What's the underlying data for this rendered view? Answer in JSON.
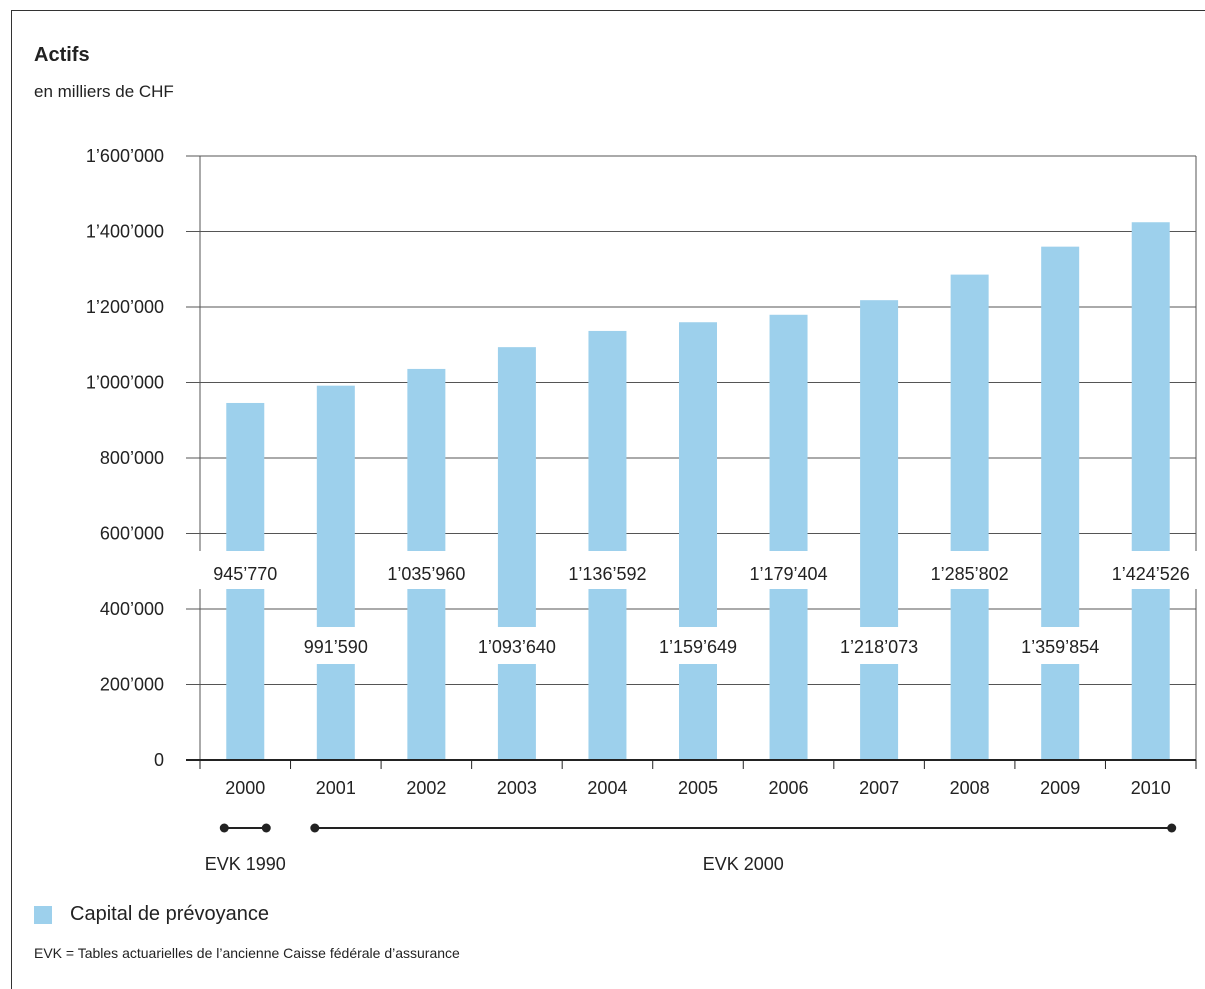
{
  "header": {
    "title": "Actifs",
    "subtitle": "en milliers de CHF"
  },
  "legend": {
    "label": "Capital de prévoyance",
    "color": "#9dd0ec"
  },
  "footnote": "EVK = Tables actuarielles de l’ancienne Caisse fédérale d’assurance",
  "periods": [
    {
      "label": "EVK 1990",
      "from": "2000",
      "to": "2000"
    },
    {
      "label": "EVK 2000",
      "from": "2001",
      "to": "2010"
    }
  ],
  "chart_data": {
    "type": "bar",
    "title": "Actifs",
    "subtitle": "en milliers de CHF",
    "xlabel": "",
    "ylabel": "",
    "categories": [
      "2000",
      "2001",
      "2002",
      "2003",
      "2004",
      "2005",
      "2006",
      "2007",
      "2008",
      "2009",
      "2010"
    ],
    "series": [
      {
        "name": "Capital de prévoyance",
        "color": "#9dd0ec",
        "values": [
          945770,
          991590,
          1035960,
          1093640,
          1136592,
          1159649,
          1179404,
          1218073,
          1285802,
          1359854,
          1424526
        ],
        "value_labels": [
          "945’770",
          "991’590",
          "1’035’960",
          "1’093’640",
          "1’136’592",
          "1’159’649",
          "1’179’404",
          "1’218’073",
          "1’285’802",
          "1’359’854",
          "1’424’526"
        ]
      }
    ],
    "ylim": [
      0,
      1600000
    ],
    "yticks": [
      0,
      200000,
      400000,
      600000,
      800000,
      1000000,
      1200000,
      1400000,
      1600000
    ],
    "ytick_labels": [
      "0",
      "200’000",
      "400’000",
      "600’000",
      "800’000",
      "1’000’000",
      "1’200’000",
      "1’400’000",
      "1’600’000"
    ],
    "grid": true,
    "legend_position": "bottom-left"
  }
}
